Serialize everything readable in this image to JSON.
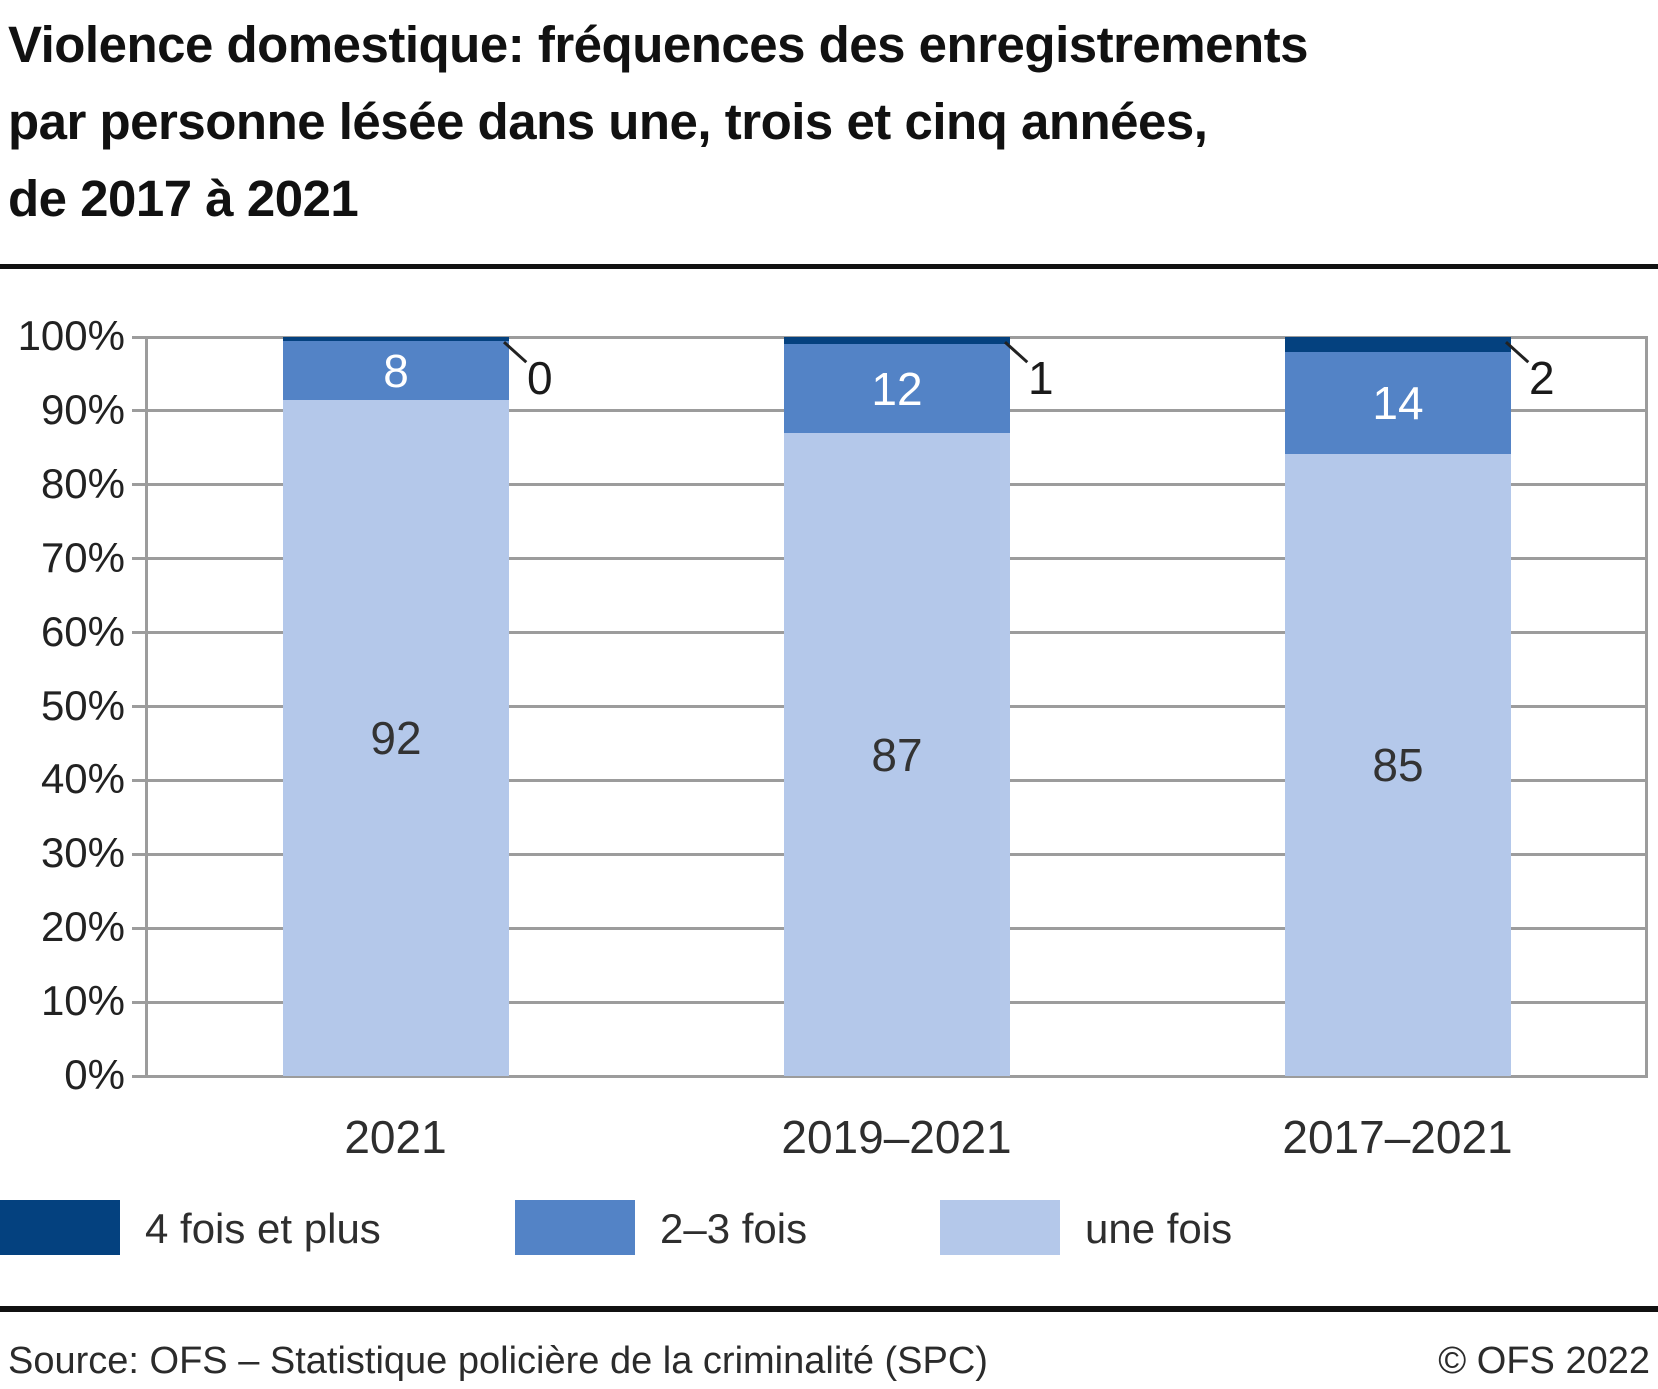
{
  "title_lines": [
    "Violence domestique: fréquences des enregistrements",
    "par personne lésée dans une, trois et cinq années,",
    "de 2017 à 2021"
  ],
  "chart_data": {
    "type": "bar",
    "subtype": "stacked-100-percent",
    "categories": [
      "2021",
      "2019–2021",
      "2017–2021"
    ],
    "series": [
      {
        "name": "une fois",
        "color": "#b4c8ea",
        "values": [
          92,
          87,
          85
        ],
        "label_color": "#333333",
        "label_placement": "inside"
      },
      {
        "name": "2–3 fois",
        "color": "#5383c6",
        "values": [
          8,
          12,
          14
        ],
        "label_color": "#ffffff",
        "label_placement": "inside"
      },
      {
        "name": "4 fois et plus",
        "color": "#04417f",
        "values": [
          0,
          1,
          2
        ],
        "label_color": "#1a1a1a",
        "label_placement": "callout"
      }
    ],
    "legend_order": [
      "4 fois et plus",
      "2–3 fois",
      "une fois"
    ],
    "y_axis": {
      "min": 0,
      "max": 100,
      "ticks": [
        "100%",
        "90%",
        "80%",
        "70%",
        "60%",
        "50%",
        "40%",
        "30%",
        "20%",
        "10%",
        "0%"
      ]
    },
    "grid": true,
    "legend_position": "bottom-left"
  },
  "colors": {
    "grid": "#9c9c9c",
    "axis": "#9c9c9c",
    "rule": "#111111"
  },
  "footer": {
    "source": "Source: OFS – Statistique policière de la criminalité (SPC)",
    "copyright": "© OFS 2022"
  }
}
